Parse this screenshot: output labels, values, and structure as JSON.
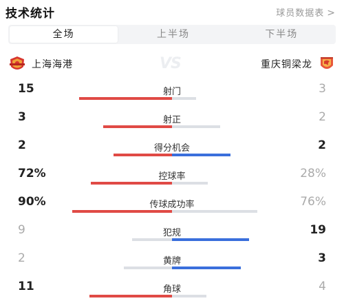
{
  "header": {
    "title": "技术统计",
    "link_label": "球员数据表",
    "link_chevron": ">"
  },
  "tabs": [
    {
      "label": "全场",
      "active": true
    },
    {
      "label": "上半场",
      "active": false
    },
    {
      "label": "下半场",
      "active": false
    }
  ],
  "teams": {
    "home": {
      "name": "上海海港",
      "color": "#e04a45"
    },
    "away": {
      "name": "重庆铜梁龙",
      "color": "#3a6fdc"
    },
    "vs_label": "VS"
  },
  "stats": [
    {
      "label": "射门",
      "home": "15",
      "away": "3",
      "home_share": 0.833,
      "away_share": 0.167,
      "leader": "home"
    },
    {
      "label": "射正",
      "home": "3",
      "away": "2",
      "home_share": 0.6,
      "away_share": 0.4,
      "leader": "home"
    },
    {
      "label": "得分机会",
      "home": "2",
      "away": "2",
      "home_share": 0.5,
      "away_share": 0.5,
      "leader": "both"
    },
    {
      "label": "控球率",
      "home": "72%",
      "away": "28%",
      "home_share": 0.72,
      "away_share": 0.28,
      "leader": "home"
    },
    {
      "label": "传球成功率",
      "home": "90%",
      "away": "76%",
      "home_share": 0.9,
      "away_share": 0.76,
      "leader": "home"
    },
    {
      "label": "犯规",
      "home": "9",
      "away": "19",
      "home_share": 0.321,
      "away_share": 0.679,
      "leader": "away"
    },
    {
      "label": "黄牌",
      "home": "2",
      "away": "3",
      "home_share": 0.4,
      "away_share": 0.6,
      "leader": "away"
    },
    {
      "label": "角球",
      "home": "11",
      "away": "4",
      "home_share": 0.733,
      "away_share": 0.267,
      "leader": "home"
    }
  ]
}
